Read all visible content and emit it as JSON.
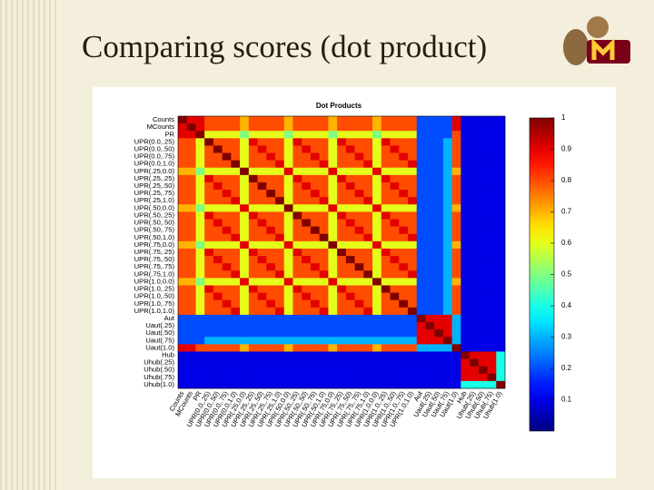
{
  "title": "Comparing scores (dot product)",
  "chart_data": {
    "type": "heatmap",
    "title": "Dot Products",
    "categories": [
      "Counts",
      "MCounts",
      "PR",
      "UPR(0.0,.25)",
      "UPR(0.0,.50)",
      "UPR(0.0,.75)",
      "UPR(0.0,1.0)",
      "UPR(.25,0.0)",
      "UPR(.25,.25)",
      "UPR(.25,.50)",
      "UPR(.25,.75)",
      "UPR(.25,1.0)",
      "UPR(.50,0.0)",
      "UPR(.50,.25)",
      "UPR(.50,.50)",
      "UPR(.50,.75)",
      "UPR(.50,1.0)",
      "UPR(.75,0.0)",
      "UPR(.75,.25)",
      "UPR(.75,.50)",
      "UPR(.75,.75)",
      "UPR(.75,1.0)",
      "UPR(1.0,0.0)",
      "UPR(1.0,.25)",
      "UPR(1.0,.50)",
      "UPR(1.0,.75)",
      "UPR(1.0,1.0)",
      "Aut",
      "Uaut(.25)",
      "Uaut(.50)",
      "Uaut(.75)",
      "Uaut(1.0)",
      "Hub",
      "Uhub(.25)",
      "Uhub(.50)",
      "Uhub(.75)",
      "Uhub(1.0)"
    ],
    "values": [
      [
        1,
        0.9,
        0.9,
        0.8,
        0.8,
        0.8,
        0.8,
        0.7,
        0.8,
        0.8,
        0.8,
        0.8,
        0.7,
        0.8,
        0.8,
        0.8,
        0.8,
        0.7,
        0.8,
        0.8,
        0.8,
        0.8,
        0.7,
        0.8,
        0.8,
        0.8,
        0.8,
        0.2,
        0.2,
        0.2,
        0.2,
        0.9,
        0.1,
        0.1,
        0.1,
        0.1,
        0.1
      ],
      [
        0.9,
        1,
        0.9,
        0.8,
        0.8,
        0.8,
        0.8,
        0.7,
        0.8,
        0.8,
        0.8,
        0.8,
        0.7,
        0.8,
        0.8,
        0.8,
        0.8,
        0.7,
        0.8,
        0.8,
        0.8,
        0.8,
        0.7,
        0.8,
        0.8,
        0.8,
        0.8,
        0.2,
        0.2,
        0.2,
        0.2,
        0.9,
        0.1,
        0.1,
        0.1,
        0.1,
        0.1
      ],
      [
        0.9,
        0.9,
        1,
        0.6,
        0.6,
        0.6,
        0.6,
        0.5,
        0.6,
        0.6,
        0.6,
        0.6,
        0.5,
        0.6,
        0.6,
        0.6,
        0.6,
        0.5,
        0.6,
        0.6,
        0.6,
        0.6,
        0.5,
        0.6,
        0.6,
        0.6,
        0.6,
        0.2,
        0.2,
        0.2,
        0.2,
        0.8,
        0.1,
        0.1,
        0.1,
        0.1,
        0.1
      ],
      [
        0.8,
        0.8,
        0.6,
        1,
        0.8,
        0.8,
        0.8,
        0.6,
        0.9,
        0.8,
        0.8,
        0.8,
        0.6,
        0.9,
        0.8,
        0.8,
        0.8,
        0.6,
        0.9,
        0.8,
        0.8,
        0.8,
        0.6,
        0.9,
        0.8,
        0.8,
        0.8,
        0.2,
        0.2,
        0.2,
        0.3,
        0.8,
        0.1,
        0.1,
        0.1,
        0.1,
        0.1
      ],
      [
        0.8,
        0.8,
        0.6,
        0.8,
        1,
        0.8,
        0.8,
        0.6,
        0.8,
        0.9,
        0.8,
        0.8,
        0.6,
        0.8,
        0.9,
        0.8,
        0.8,
        0.6,
        0.8,
        0.9,
        0.8,
        0.8,
        0.6,
        0.8,
        0.9,
        0.8,
        0.8,
        0.2,
        0.2,
        0.2,
        0.3,
        0.8,
        0.1,
        0.1,
        0.1,
        0.1,
        0.1
      ],
      [
        0.8,
        0.8,
        0.6,
        0.8,
        0.8,
        1,
        0.8,
        0.6,
        0.8,
        0.8,
        0.9,
        0.8,
        0.6,
        0.8,
        0.8,
        0.9,
        0.8,
        0.6,
        0.8,
        0.8,
        0.9,
        0.8,
        0.6,
        0.8,
        0.8,
        0.9,
        0.8,
        0.2,
        0.2,
        0.2,
        0.3,
        0.8,
        0.1,
        0.1,
        0.1,
        0.1,
        0.1
      ],
      [
        0.8,
        0.8,
        0.6,
        0.8,
        0.8,
        0.8,
        1,
        0.6,
        0.8,
        0.8,
        0.8,
        0.9,
        0.6,
        0.8,
        0.8,
        0.8,
        0.9,
        0.6,
        0.8,
        0.8,
        0.8,
        0.9,
        0.6,
        0.8,
        0.8,
        0.8,
        0.9,
        0.2,
        0.2,
        0.2,
        0.3,
        0.8,
        0.1,
        0.1,
        0.1,
        0.1,
        0.1
      ],
      [
        0.7,
        0.7,
        0.5,
        0.6,
        0.6,
        0.6,
        0.6,
        1,
        0.6,
        0.6,
        0.6,
        0.6,
        0.9,
        0.6,
        0.6,
        0.6,
        0.6,
        0.9,
        0.6,
        0.6,
        0.6,
        0.6,
        0.9,
        0.6,
        0.6,
        0.6,
        0.6,
        0.2,
        0.2,
        0.2,
        0.3,
        0.7,
        0.1,
        0.1,
        0.1,
        0.1,
        0.1
      ],
      [
        0.8,
        0.8,
        0.6,
        0.9,
        0.8,
        0.8,
        0.8,
        0.6,
        1,
        0.8,
        0.8,
        0.8,
        0.6,
        0.9,
        0.8,
        0.8,
        0.8,
        0.6,
        0.9,
        0.8,
        0.8,
        0.8,
        0.6,
        0.9,
        0.8,
        0.8,
        0.8,
        0.2,
        0.2,
        0.2,
        0.3,
        0.8,
        0.1,
        0.1,
        0.1,
        0.1,
        0.1
      ],
      [
        0.8,
        0.8,
        0.6,
        0.8,
        0.9,
        0.8,
        0.8,
        0.6,
        0.8,
        1,
        0.8,
        0.8,
        0.6,
        0.8,
        0.9,
        0.8,
        0.8,
        0.6,
        0.8,
        0.9,
        0.8,
        0.8,
        0.6,
        0.8,
        0.9,
        0.8,
        0.8,
        0.2,
        0.2,
        0.2,
        0.3,
        0.8,
        0.1,
        0.1,
        0.1,
        0.1,
        0.1
      ],
      [
        0.8,
        0.8,
        0.6,
        0.8,
        0.8,
        0.9,
        0.8,
        0.6,
        0.8,
        0.8,
        1,
        0.8,
        0.6,
        0.8,
        0.8,
        0.9,
        0.8,
        0.6,
        0.8,
        0.8,
        0.9,
        0.8,
        0.6,
        0.8,
        0.8,
        0.9,
        0.8,
        0.2,
        0.2,
        0.2,
        0.3,
        0.8,
        0.1,
        0.1,
        0.1,
        0.1,
        0.1
      ],
      [
        0.8,
        0.8,
        0.6,
        0.8,
        0.8,
        0.8,
        0.9,
        0.6,
        0.8,
        0.8,
        0.8,
        1,
        0.6,
        0.8,
        0.8,
        0.8,
        0.9,
        0.6,
        0.8,
        0.8,
        0.8,
        0.9,
        0.6,
        0.8,
        0.8,
        0.8,
        0.9,
        0.2,
        0.2,
        0.2,
        0.3,
        0.8,
        0.1,
        0.1,
        0.1,
        0.1,
        0.1
      ],
      [
        0.7,
        0.7,
        0.5,
        0.6,
        0.6,
        0.6,
        0.6,
        0.9,
        0.6,
        0.6,
        0.6,
        0.6,
        1,
        0.6,
        0.6,
        0.6,
        0.6,
        0.9,
        0.6,
        0.6,
        0.6,
        0.6,
        0.9,
        0.6,
        0.6,
        0.6,
        0.6,
        0.2,
        0.2,
        0.2,
        0.3,
        0.7,
        0.1,
        0.1,
        0.1,
        0.1,
        0.1
      ],
      [
        0.8,
        0.8,
        0.6,
        0.9,
        0.8,
        0.8,
        0.8,
        0.6,
        0.9,
        0.8,
        0.8,
        0.8,
        0.6,
        1,
        0.8,
        0.8,
        0.8,
        0.6,
        0.9,
        0.8,
        0.8,
        0.8,
        0.6,
        0.9,
        0.8,
        0.8,
        0.8,
        0.2,
        0.2,
        0.2,
        0.3,
        0.8,
        0.1,
        0.1,
        0.1,
        0.1,
        0.1
      ],
      [
        0.8,
        0.8,
        0.6,
        0.8,
        0.9,
        0.8,
        0.8,
        0.6,
        0.8,
        0.9,
        0.8,
        0.8,
        0.6,
        0.8,
        1,
        0.8,
        0.8,
        0.6,
        0.8,
        0.9,
        0.8,
        0.8,
        0.6,
        0.8,
        0.9,
        0.8,
        0.8,
        0.2,
        0.2,
        0.2,
        0.3,
        0.8,
        0.1,
        0.1,
        0.1,
        0.1,
        0.1
      ],
      [
        0.8,
        0.8,
        0.6,
        0.8,
        0.8,
        0.9,
        0.8,
        0.6,
        0.8,
        0.8,
        0.9,
        0.8,
        0.6,
        0.8,
        0.8,
        1,
        0.8,
        0.6,
        0.8,
        0.8,
        0.9,
        0.8,
        0.6,
        0.8,
        0.8,
        0.9,
        0.8,
        0.2,
        0.2,
        0.2,
        0.3,
        0.8,
        0.1,
        0.1,
        0.1,
        0.1,
        0.1
      ],
      [
        0.8,
        0.8,
        0.6,
        0.8,
        0.8,
        0.8,
        0.9,
        0.6,
        0.8,
        0.8,
        0.8,
        0.9,
        0.6,
        0.8,
        0.8,
        0.8,
        1,
        0.6,
        0.8,
        0.8,
        0.8,
        0.9,
        0.6,
        0.8,
        0.8,
        0.8,
        0.9,
        0.2,
        0.2,
        0.2,
        0.3,
        0.8,
        0.1,
        0.1,
        0.1,
        0.1,
        0.1
      ],
      [
        0.7,
        0.7,
        0.5,
        0.6,
        0.6,
        0.6,
        0.6,
        0.9,
        0.6,
        0.6,
        0.6,
        0.6,
        0.9,
        0.6,
        0.6,
        0.6,
        0.6,
        1,
        0.6,
        0.6,
        0.6,
        0.6,
        0.9,
        0.6,
        0.6,
        0.6,
        0.6,
        0.2,
        0.2,
        0.2,
        0.3,
        0.7,
        0.1,
        0.1,
        0.1,
        0.1,
        0.1
      ],
      [
        0.8,
        0.8,
        0.6,
        0.9,
        0.8,
        0.8,
        0.8,
        0.6,
        0.9,
        0.8,
        0.8,
        0.8,
        0.6,
        0.9,
        0.8,
        0.8,
        0.8,
        0.6,
        1,
        0.8,
        0.8,
        0.8,
        0.6,
        0.9,
        0.8,
        0.8,
        0.8,
        0.2,
        0.2,
        0.2,
        0.3,
        0.8,
        0.1,
        0.1,
        0.1,
        0.1,
        0.1
      ],
      [
        0.8,
        0.8,
        0.6,
        0.8,
        0.9,
        0.8,
        0.8,
        0.6,
        0.8,
        0.9,
        0.8,
        0.8,
        0.6,
        0.8,
        0.9,
        0.8,
        0.8,
        0.6,
        0.8,
        1,
        0.8,
        0.8,
        0.6,
        0.8,
        0.9,
        0.8,
        0.8,
        0.2,
        0.2,
        0.2,
        0.3,
        0.8,
        0.1,
        0.1,
        0.1,
        0.1,
        0.1
      ],
      [
        0.8,
        0.8,
        0.6,
        0.8,
        0.8,
        0.9,
        0.8,
        0.6,
        0.8,
        0.8,
        0.9,
        0.8,
        0.6,
        0.8,
        0.8,
        0.9,
        0.8,
        0.6,
        0.8,
        0.8,
        1,
        0.8,
        0.6,
        0.8,
        0.8,
        0.9,
        0.8,
        0.2,
        0.2,
        0.2,
        0.3,
        0.8,
        0.1,
        0.1,
        0.1,
        0.1,
        0.1
      ],
      [
        0.8,
        0.8,
        0.6,
        0.8,
        0.8,
        0.8,
        0.9,
        0.6,
        0.8,
        0.8,
        0.8,
        0.9,
        0.6,
        0.8,
        0.8,
        0.8,
        0.9,
        0.6,
        0.8,
        0.8,
        0.8,
        1,
        0.6,
        0.8,
        0.8,
        0.8,
        0.9,
        0.2,
        0.2,
        0.2,
        0.3,
        0.8,
        0.1,
        0.1,
        0.1,
        0.1,
        0.1
      ],
      [
        0.7,
        0.7,
        0.5,
        0.6,
        0.6,
        0.6,
        0.6,
        0.9,
        0.6,
        0.6,
        0.6,
        0.6,
        0.9,
        0.6,
        0.6,
        0.6,
        0.6,
        0.9,
        0.6,
        0.6,
        0.6,
        0.6,
        1,
        0.6,
        0.6,
        0.6,
        0.6,
        0.2,
        0.2,
        0.2,
        0.3,
        0.7,
        0.1,
        0.1,
        0.1,
        0.1,
        0.1
      ],
      [
        0.8,
        0.8,
        0.6,
        0.9,
        0.8,
        0.8,
        0.8,
        0.6,
        0.9,
        0.8,
        0.8,
        0.8,
        0.6,
        0.9,
        0.8,
        0.8,
        0.8,
        0.6,
        0.9,
        0.8,
        0.8,
        0.8,
        0.6,
        1,
        0.8,
        0.8,
        0.8,
        0.2,
        0.2,
        0.2,
        0.3,
        0.8,
        0.1,
        0.1,
        0.1,
        0.1,
        0.1
      ],
      [
        0.8,
        0.8,
        0.6,
        0.8,
        0.9,
        0.8,
        0.8,
        0.6,
        0.8,
        0.9,
        0.8,
        0.8,
        0.6,
        0.8,
        0.9,
        0.8,
        0.8,
        0.6,
        0.8,
        0.9,
        0.8,
        0.8,
        0.6,
        0.8,
        1,
        0.8,
        0.8,
        0.2,
        0.2,
        0.2,
        0.3,
        0.8,
        0.1,
        0.1,
        0.1,
        0.1,
        0.1
      ],
      [
        0.8,
        0.8,
        0.6,
        0.8,
        0.8,
        0.9,
        0.8,
        0.6,
        0.8,
        0.8,
        0.9,
        0.8,
        0.6,
        0.8,
        0.8,
        0.9,
        0.8,
        0.6,
        0.8,
        0.8,
        0.9,
        0.8,
        0.6,
        0.8,
        0.8,
        1,
        0.8,
        0.2,
        0.2,
        0.2,
        0.3,
        0.8,
        0.1,
        0.1,
        0.1,
        0.1,
        0.1
      ],
      [
        0.8,
        0.8,
        0.6,
        0.8,
        0.8,
        0.8,
        0.9,
        0.6,
        0.8,
        0.8,
        0.8,
        0.9,
        0.6,
        0.8,
        0.8,
        0.8,
        0.9,
        0.6,
        0.8,
        0.8,
        0.8,
        0.9,
        0.6,
        0.8,
        0.8,
        0.8,
        1,
        0.2,
        0.2,
        0.2,
        0.3,
        0.8,
        0.1,
        0.1,
        0.1,
        0.1,
        0.1
      ],
      [
        0.2,
        0.2,
        0.2,
        0.2,
        0.2,
        0.2,
        0.2,
        0.2,
        0.2,
        0.2,
        0.2,
        0.2,
        0.2,
        0.2,
        0.2,
        0.2,
        0.2,
        0.2,
        0.2,
        0.2,
        0.2,
        0.2,
        0.2,
        0.2,
        0.2,
        0.2,
        0.2,
        1,
        0.9,
        0.9,
        0.9,
        0.3,
        0.1,
        0.1,
        0.1,
        0.1,
        0.1
      ],
      [
        0.2,
        0.2,
        0.2,
        0.2,
        0.2,
        0.2,
        0.2,
        0.2,
        0.2,
        0.2,
        0.2,
        0.2,
        0.2,
        0.2,
        0.2,
        0.2,
        0.2,
        0.2,
        0.2,
        0.2,
        0.2,
        0.2,
        0.2,
        0.2,
        0.2,
        0.2,
        0.2,
        0.9,
        1,
        0.9,
        0.9,
        0.3,
        0.1,
        0.1,
        0.1,
        0.1,
        0.1
      ],
      [
        0.2,
        0.2,
        0.2,
        0.2,
        0.2,
        0.2,
        0.2,
        0.2,
        0.2,
        0.2,
        0.2,
        0.2,
        0.2,
        0.2,
        0.2,
        0.2,
        0.2,
        0.2,
        0.2,
        0.2,
        0.2,
        0.2,
        0.2,
        0.2,
        0.2,
        0.2,
        0.2,
        0.9,
        0.9,
        1,
        0.9,
        0.3,
        0.1,
        0.1,
        0.1,
        0.1,
        0.1
      ],
      [
        0.2,
        0.2,
        0.2,
        0.3,
        0.3,
        0.3,
        0.3,
        0.3,
        0.3,
        0.3,
        0.3,
        0.3,
        0.3,
        0.3,
        0.3,
        0.3,
        0.3,
        0.3,
        0.3,
        0.3,
        0.3,
        0.3,
        0.3,
        0.3,
        0.3,
        0.3,
        0.3,
        0.9,
        0.9,
        0.9,
        1,
        0.3,
        0.1,
        0.1,
        0.1,
        0.1,
        0.1
      ],
      [
        0.9,
        0.9,
        0.8,
        0.8,
        0.8,
        0.8,
        0.8,
        0.7,
        0.8,
        0.8,
        0.8,
        0.8,
        0.7,
        0.8,
        0.8,
        0.8,
        0.8,
        0.7,
        0.8,
        0.8,
        0.8,
        0.8,
        0.7,
        0.8,
        0.8,
        0.8,
        0.8,
        0.3,
        0.3,
        0.3,
        0.3,
        1,
        0.1,
        0.1,
        0.1,
        0.1,
        0.1
      ],
      [
        0.1,
        0.1,
        0.1,
        0.1,
        0.1,
        0.1,
        0.1,
        0.1,
        0.1,
        0.1,
        0.1,
        0.1,
        0.1,
        0.1,
        0.1,
        0.1,
        0.1,
        0.1,
        0.1,
        0.1,
        0.1,
        0.1,
        0.1,
        0.1,
        0.1,
        0.1,
        0.1,
        0.1,
        0.1,
        0.1,
        0.1,
        0.1,
        1,
        0.9,
        0.9,
        0.9,
        0.4
      ],
      [
        0.1,
        0.1,
        0.1,
        0.1,
        0.1,
        0.1,
        0.1,
        0.1,
        0.1,
        0.1,
        0.1,
        0.1,
        0.1,
        0.1,
        0.1,
        0.1,
        0.1,
        0.1,
        0.1,
        0.1,
        0.1,
        0.1,
        0.1,
        0.1,
        0.1,
        0.1,
        0.1,
        0.1,
        0.1,
        0.1,
        0.1,
        0.1,
        0.9,
        1,
        0.9,
        0.9,
        0.4
      ],
      [
        0.1,
        0.1,
        0.1,
        0.1,
        0.1,
        0.1,
        0.1,
        0.1,
        0.1,
        0.1,
        0.1,
        0.1,
        0.1,
        0.1,
        0.1,
        0.1,
        0.1,
        0.1,
        0.1,
        0.1,
        0.1,
        0.1,
        0.1,
        0.1,
        0.1,
        0.1,
        0.1,
        0.1,
        0.1,
        0.1,
        0.1,
        0.1,
        0.9,
        0.9,
        1,
        0.9,
        0.4
      ],
      [
        0.1,
        0.1,
        0.1,
        0.1,
        0.1,
        0.1,
        0.1,
        0.1,
        0.1,
        0.1,
        0.1,
        0.1,
        0.1,
        0.1,
        0.1,
        0.1,
        0.1,
        0.1,
        0.1,
        0.1,
        0.1,
        0.1,
        0.1,
        0.1,
        0.1,
        0.1,
        0.1,
        0.1,
        0.1,
        0.1,
        0.1,
        0.1,
        0.9,
        0.9,
        0.9,
        1,
        0.4
      ],
      [
        0.1,
        0.1,
        0.1,
        0.1,
        0.1,
        0.1,
        0.1,
        0.1,
        0.1,
        0.1,
        0.1,
        0.1,
        0.1,
        0.1,
        0.1,
        0.1,
        0.1,
        0.1,
        0.1,
        0.1,
        0.1,
        0.1,
        0.1,
        0.1,
        0.1,
        0.1,
        0.1,
        0.1,
        0.1,
        0.1,
        0.1,
        0.1,
        0.4,
        0.4,
        0.4,
        0.4,
        1
      ]
    ],
    "colormap": "jet",
    "clim": [
      0,
      1
    ],
    "colorbar_ticks": [
      0.1,
      0.2,
      0.3,
      0.4,
      0.5,
      0.6,
      0.7,
      0.8,
      0.9,
      1
    ]
  }
}
